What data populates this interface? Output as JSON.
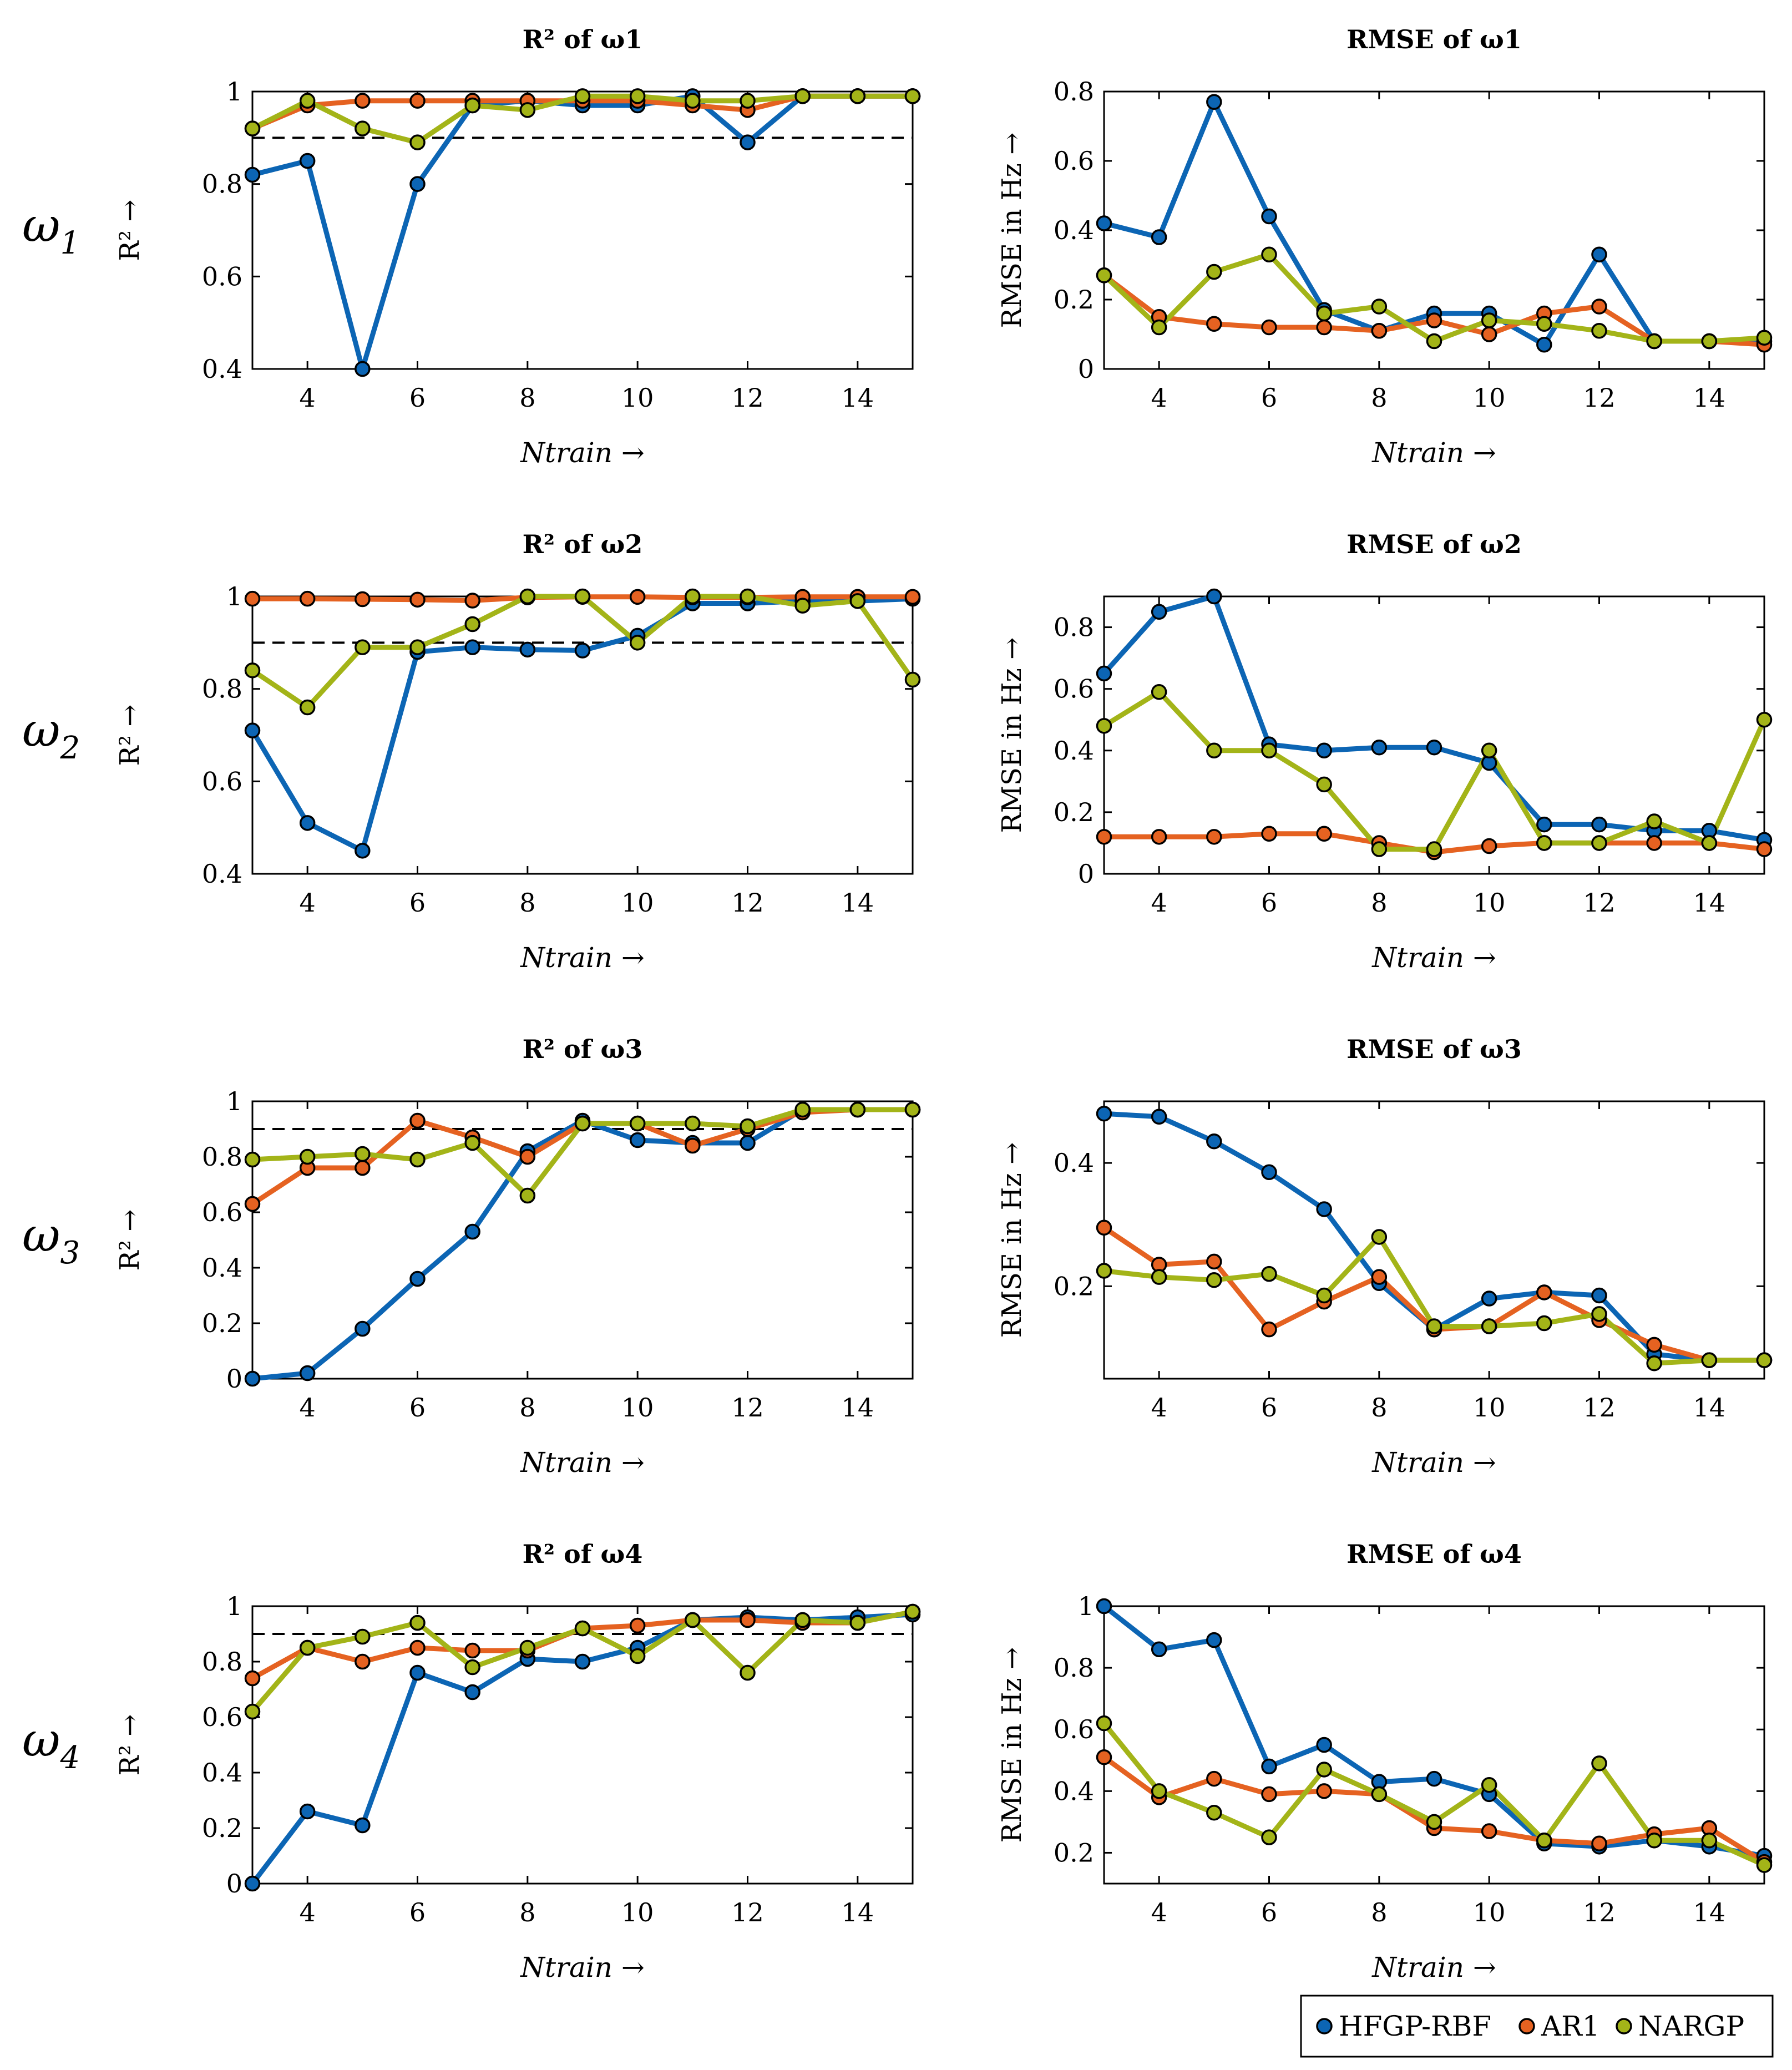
{
  "colors": {
    "hfgp": "#0c65b4",
    "ar1": "#e56221",
    "nargp": "#a3b418",
    "threshold": "#000000"
  },
  "legend": {
    "entries": [
      "HFGP-RBF",
      "AR1",
      "NARGP"
    ],
    "placement": "bottom-right"
  },
  "row_labels": [
    "ω1",
    "ω2",
    "ω3",
    "ω4"
  ],
  "chart_data": [
    {
      "id": "r2-w1",
      "type": "line",
      "title": "R² of ω1",
      "xlabel": "Ntrain →",
      "ylabel": "R² →",
      "xlim": [
        3,
        15
      ],
      "ylim": [
        0.4,
        1.0
      ],
      "xticks": [
        4,
        6,
        8,
        10,
        12,
        14
      ],
      "yticks": [
        0.4,
        0.6,
        0.8,
        1.0
      ],
      "ytick_labels": [
        "0.4",
        "0.6",
        "0.8",
        "1"
      ],
      "threshold": 0.9,
      "x": [
        3,
        4,
        5,
        6,
        7,
        8,
        9,
        10,
        11,
        12,
        13,
        14,
        15
      ],
      "series": [
        {
          "name": "HFGP-RBF",
          "values": [
            0.82,
            0.85,
            0.4,
            0.8,
            0.97,
            0.98,
            0.97,
            0.97,
            0.99,
            0.89,
            0.99,
            0.99,
            0.99
          ]
        },
        {
          "name": "AR1",
          "values": [
            0.92,
            0.97,
            0.98,
            0.98,
            0.98,
            0.98,
            0.98,
            0.98,
            0.97,
            0.96,
            0.99,
            0.99,
            0.99
          ]
        },
        {
          "name": "NARGP",
          "values": [
            0.92,
            0.98,
            0.92,
            0.89,
            0.97,
            0.96,
            0.99,
            0.99,
            0.98,
            0.98,
            0.99,
            0.99,
            0.99
          ]
        }
      ]
    },
    {
      "id": "rmse-w1",
      "type": "line",
      "title": "RMSE of ω1",
      "xlabel": "Ntrain →",
      "ylabel": "RMSE in Hz →",
      "xlim": [
        3,
        15
      ],
      "ylim": [
        0,
        0.8
      ],
      "xticks": [
        4,
        6,
        8,
        10,
        12,
        14
      ],
      "yticks": [
        0,
        0.2,
        0.4,
        0.6,
        0.8
      ],
      "ytick_labels": [
        "0",
        "0.2",
        "0.4",
        "0.6",
        "0.8"
      ],
      "x": [
        3,
        4,
        5,
        6,
        7,
        8,
        9,
        10,
        11,
        12,
        13,
        14,
        15
      ],
      "series": [
        {
          "name": "HFGP-RBF",
          "values": [
            0.42,
            0.38,
            0.77,
            0.44,
            0.17,
            0.11,
            0.16,
            0.16,
            0.07,
            0.33,
            0.08,
            0.08,
            0.08
          ]
        },
        {
          "name": "AR1",
          "values": [
            0.27,
            0.15,
            0.13,
            0.12,
            0.12,
            0.11,
            0.14,
            0.1,
            0.16,
            0.18,
            0.08,
            0.08,
            0.07
          ]
        },
        {
          "name": "NARGP",
          "values": [
            0.27,
            0.12,
            0.28,
            0.33,
            0.16,
            0.18,
            0.08,
            0.14,
            0.13,
            0.11,
            0.08,
            0.08,
            0.09
          ]
        }
      ]
    },
    {
      "id": "r2-w2",
      "type": "line",
      "title": "R² of ω2",
      "xlabel": "Ntrain →",
      "ylabel": "R² →",
      "xlim": [
        3,
        15
      ],
      "ylim": [
        0.4,
        1.0
      ],
      "xticks": [
        4,
        6,
        8,
        10,
        12,
        14
      ],
      "yticks": [
        0.4,
        0.6,
        0.8,
        1.0
      ],
      "ytick_labels": [
        "0.4",
        "0.6",
        "0.8",
        "1"
      ],
      "threshold": 0.9,
      "x": [
        3,
        4,
        5,
        6,
        7,
        8,
        9,
        10,
        11,
        12,
        13,
        14,
        15
      ],
      "series": [
        {
          "name": "HFGP-RBF",
          "values": [
            0.71,
            0.51,
            0.45,
            0.88,
            0.89,
            0.885,
            0.883,
            0.915,
            0.985,
            0.985,
            0.99,
            0.99,
            0.995
          ]
        },
        {
          "name": "AR1",
          "values": [
            0.995,
            0.995,
            0.994,
            0.993,
            0.991,
            0.998,
            0.999,
            0.999,
            0.998,
            0.998,
            0.999,
            0.999,
            0.999
          ]
        },
        {
          "name": "NARGP",
          "values": [
            0.84,
            0.76,
            0.89,
            0.89,
            0.94,
            1.0,
            1.0,
            0.9,
            1.0,
            1.0,
            0.98,
            0.99,
            0.82
          ]
        }
      ]
    },
    {
      "id": "rmse-w2",
      "type": "line",
      "title": "RMSE of ω2",
      "xlabel": "Ntrain →",
      "ylabel": "RMSE in Hz →",
      "xlim": [
        3,
        15
      ],
      "ylim": [
        0,
        0.9
      ],
      "xticks": [
        4,
        6,
        8,
        10,
        12,
        14
      ],
      "yticks": [
        0,
        0.2,
        0.4,
        0.6,
        0.8
      ],
      "ytick_labels": [
        "0",
        "0.2",
        "0.4",
        "0.6",
        "0.8"
      ],
      "x": [
        3,
        4,
        5,
        6,
        7,
        8,
        9,
        10,
        11,
        12,
        13,
        14,
        15
      ],
      "series": [
        {
          "name": "HFGP-RBF",
          "values": [
            0.65,
            0.85,
            0.9,
            0.42,
            0.4,
            0.41,
            0.41,
            0.36,
            0.16,
            0.16,
            0.14,
            0.14,
            0.11
          ]
        },
        {
          "name": "AR1",
          "values": [
            0.12,
            0.12,
            0.12,
            0.13,
            0.13,
            0.1,
            0.07,
            0.09,
            0.1,
            0.1,
            0.1,
            0.1,
            0.08
          ]
        },
        {
          "name": "NARGP",
          "values": [
            0.48,
            0.59,
            0.4,
            0.4,
            0.29,
            0.08,
            0.08,
            0.4,
            0.1,
            0.1,
            0.17,
            0.1,
            0.5
          ]
        }
      ]
    },
    {
      "id": "r2-w3",
      "type": "line",
      "title": "R² of ω3",
      "xlabel": "Ntrain →",
      "ylabel": "R² →",
      "xlim": [
        3,
        15
      ],
      "ylim": [
        0,
        1.0
      ],
      "xticks": [
        4,
        6,
        8,
        10,
        12,
        14
      ],
      "yticks": [
        0,
        0.2,
        0.4,
        0.6,
        0.8,
        1.0
      ],
      "ytick_labels": [
        "0",
        "0.2",
        "0.4",
        "0.6",
        "0.8",
        "1"
      ],
      "threshold": 0.9,
      "x": [
        3,
        4,
        5,
        6,
        7,
        8,
        9,
        10,
        11,
        12,
        13,
        14,
        15
      ],
      "series": [
        {
          "name": "HFGP-RBF",
          "values": [
            0.0,
            0.02,
            0.18,
            0.36,
            0.53,
            0.82,
            0.93,
            0.86,
            0.85,
            0.85,
            0.97,
            0.97,
            0.97
          ]
        },
        {
          "name": "AR1",
          "values": [
            0.63,
            0.76,
            0.76,
            0.93,
            0.87,
            0.8,
            0.92,
            0.92,
            0.84,
            0.9,
            0.96,
            0.97,
            0.97
          ]
        },
        {
          "name": "NARGP",
          "values": [
            0.79,
            0.8,
            0.81,
            0.79,
            0.85,
            0.66,
            0.92,
            0.92,
            0.92,
            0.91,
            0.97,
            0.97,
            0.97
          ]
        }
      ]
    },
    {
      "id": "rmse-w3",
      "type": "line",
      "title": "RMSE of ω3",
      "xlabel": "Ntrain →",
      "ylabel": "RMSE in Hz →",
      "xlim": [
        3,
        15
      ],
      "ylim": [
        0.05,
        0.5
      ],
      "xticks": [
        4,
        6,
        8,
        10,
        12,
        14
      ],
      "yticks": [
        0.2,
        0.4
      ],
      "ytick_labels": [
        "0.2",
        "0.4"
      ],
      "x": [
        3,
        4,
        5,
        6,
        7,
        8,
        9,
        10,
        11,
        12,
        13,
        14,
        15
      ],
      "series": [
        {
          "name": "HFGP-RBF",
          "values": [
            0.48,
            0.475,
            0.435,
            0.385,
            0.325,
            0.205,
            0.13,
            0.18,
            0.19,
            0.185,
            0.09,
            0.08,
            0.08
          ]
        },
        {
          "name": "AR1",
          "values": [
            0.295,
            0.235,
            0.24,
            0.13,
            0.175,
            0.215,
            0.13,
            0.135,
            0.19,
            0.145,
            0.105,
            0.08,
            0.08
          ]
        },
        {
          "name": "NARGP",
          "values": [
            0.225,
            0.215,
            0.21,
            0.22,
            0.185,
            0.28,
            0.135,
            0.135,
            0.14,
            0.155,
            0.075,
            0.08,
            0.08
          ]
        }
      ]
    },
    {
      "id": "r2-w4",
      "type": "line",
      "title": "R² of ω4",
      "xlabel": "Ntrain →",
      "ylabel": "R² →",
      "xlim": [
        3,
        15
      ],
      "ylim": [
        0,
        1.0
      ],
      "xticks": [
        4,
        6,
        8,
        10,
        12,
        14
      ],
      "yticks": [
        0,
        0.2,
        0.4,
        0.6,
        0.8,
        1.0
      ],
      "ytick_labels": [
        "0",
        "0.2",
        "0.4",
        "0.6",
        "0.8",
        "1"
      ],
      "threshold": 0.9,
      "x": [
        3,
        4,
        5,
        6,
        7,
        8,
        9,
        10,
        11,
        12,
        13,
        14,
        15
      ],
      "series": [
        {
          "name": "HFGP-RBF",
          "values": [
            0.0,
            0.26,
            0.21,
            0.76,
            0.69,
            0.81,
            0.8,
            0.85,
            0.95,
            0.96,
            0.95,
            0.96,
            0.97
          ]
        },
        {
          "name": "AR1",
          "values": [
            0.74,
            0.85,
            0.8,
            0.85,
            0.84,
            0.84,
            0.92,
            0.93,
            0.95,
            0.95,
            0.94,
            0.94,
            0.98
          ]
        },
        {
          "name": "NARGP",
          "values": [
            0.62,
            0.85,
            0.89,
            0.94,
            0.78,
            0.85,
            0.92,
            0.82,
            0.95,
            0.76,
            0.95,
            0.94,
            0.98
          ]
        }
      ]
    },
    {
      "id": "rmse-w4",
      "type": "line",
      "title": "RMSE of ω4",
      "xlabel": "Ntrain →",
      "ylabel": "RMSE in Hz →",
      "xlim": [
        3,
        15
      ],
      "ylim": [
        0.1,
        1.0
      ],
      "xticks": [
        4,
        6,
        8,
        10,
        12,
        14
      ],
      "yticks": [
        0.2,
        0.4,
        0.6,
        0.8,
        1.0
      ],
      "ytick_labels": [
        "0.2",
        "0.4",
        "0.6",
        "0.8",
        "1"
      ],
      "x": [
        3,
        4,
        5,
        6,
        7,
        8,
        9,
        10,
        11,
        12,
        13,
        14,
        15
      ],
      "series": [
        {
          "name": "HFGP-RBF",
          "values": [
            1.0,
            0.86,
            0.89,
            0.48,
            0.55,
            0.43,
            0.44,
            0.39,
            0.23,
            0.22,
            0.24,
            0.22,
            0.19
          ]
        },
        {
          "name": "AR1",
          "values": [
            0.51,
            0.38,
            0.44,
            0.39,
            0.4,
            0.39,
            0.28,
            0.27,
            0.24,
            0.23,
            0.26,
            0.28,
            0.17
          ]
        },
        {
          "name": "NARGP",
          "values": [
            0.62,
            0.4,
            0.33,
            0.25,
            0.47,
            0.39,
            0.3,
            0.42,
            0.24,
            0.49,
            0.24,
            0.24,
            0.16
          ]
        }
      ]
    }
  ]
}
